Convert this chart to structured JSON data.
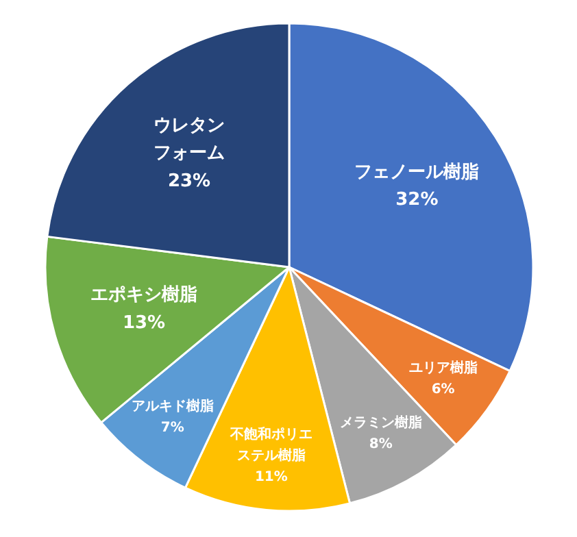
{
  "chart_data": {
    "type": "pie",
    "categories": [
      "フェノール樹脂",
      "ユリア樹脂",
      "メラミン樹脂",
      "不飽和ポリエステル樹脂",
      "アルキド樹脂",
      "エポキシ樹脂",
      "ウレタンフォーム"
    ],
    "values": [
      32,
      6,
      8,
      11,
      7,
      13,
      23
    ],
    "value_labels": [
      "32%",
      "6%",
      "8%",
      "11%",
      "7%",
      "13%",
      "23%"
    ],
    "colors": [
      "#4472c4",
      "#ed7d31",
      "#a5a5a5",
      "#ffc000",
      "#5b9bd5",
      "#70ad47",
      "#264478"
    ]
  }
}
